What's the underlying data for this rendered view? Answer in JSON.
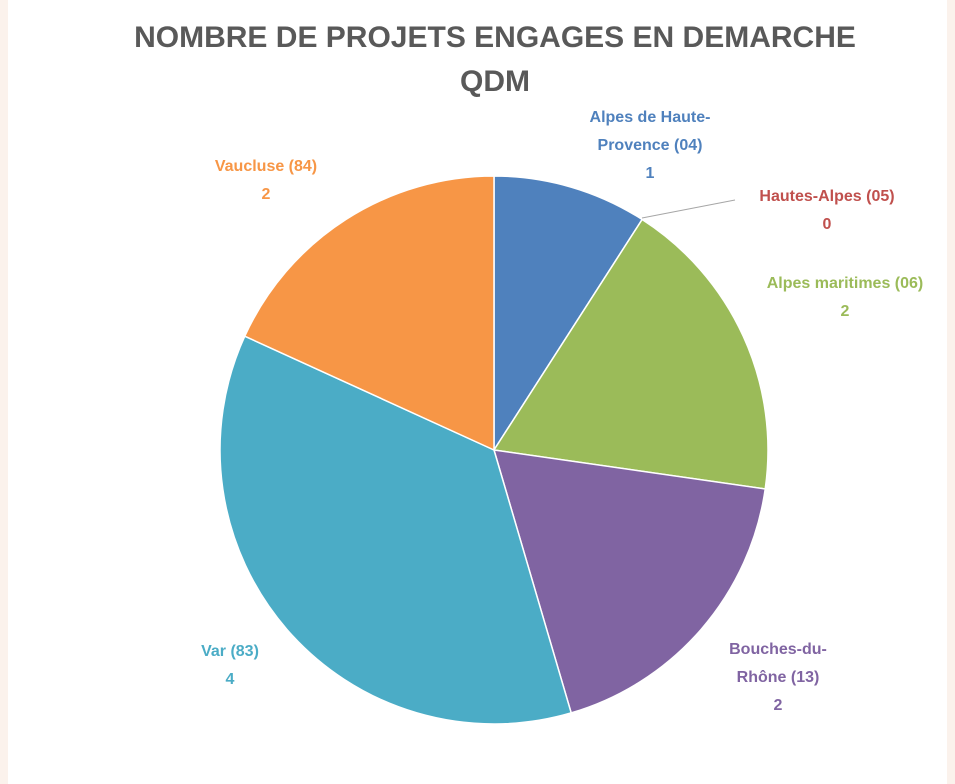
{
  "chart_data": {
    "type": "pie",
    "title": "NOMBRE DE PROJETS ENGAGES EN DEMARCHE QDM",
    "categories": [
      "Alpes de Haute-Provence (04)",
      "Hautes-Alpes (05)",
      "Alpes maritimes (06)",
      "Bouches-du-Rhône (13)",
      "Var (83)",
      "Vaucluse (84)"
    ],
    "values": [
      1,
      0,
      2,
      2,
      4,
      2
    ],
    "colors": [
      "#4f81bd",
      "#c0504d",
      "#9bbb59",
      "#8064a2",
      "#4bacc6",
      "#f79646"
    ]
  }
}
